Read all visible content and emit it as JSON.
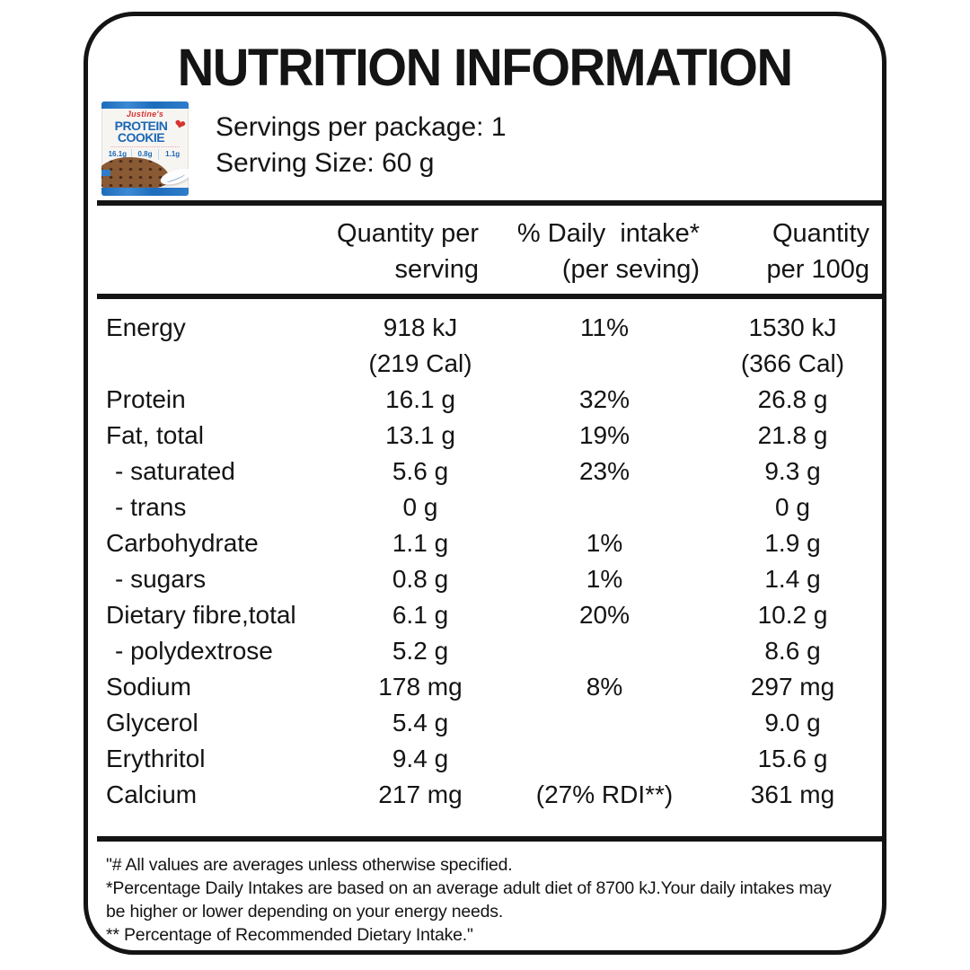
{
  "colors": {
    "ink": "#141414",
    "package_blue": "#1d6cbd",
    "package_text_blue": "#1b67b5",
    "package_red": "#d6332f",
    "cookie_brown": "#8a5a35"
  },
  "header": {
    "title": "NUTRITION INFORMATION",
    "servings_per_package": "Servings per package: 1",
    "serving_size": "Serving Size: 60 g"
  },
  "package": {
    "brand": "Justine's",
    "product_line1": "PROTEIN",
    "product_line2": "COOKIE",
    "heart_icon": "❤",
    "stats": [
      "16.1g",
      "0.8g",
      "1.1g"
    ]
  },
  "table": {
    "header": {
      "col2_line1": "Quantity per",
      "col2_line2": "serving",
      "col3_line1": "% Daily  intake*",
      "col3_line2": "(per seving)",
      "col4_line1": "Quantity",
      "col4_line2": "per 100g"
    },
    "rows": [
      {
        "label": "Energy",
        "serving": "918 kJ",
        "serving_sub": "(219 Cal)",
        "di": "11%",
        "per100": "1530 kJ",
        "per100_sub": "(366 Cal)"
      },
      {
        "label": "Protein",
        "serving": "16.1 g",
        "di": "32%",
        "per100": "26.8 g"
      },
      {
        "label": "Fat, total",
        "serving": "13.1 g",
        "di": "19%",
        "per100": "21.8 g"
      },
      {
        "label": "- saturated",
        "serving": "5.6 g",
        "di": "23%",
        "per100": "9.3 g"
      },
      {
        "label": "- trans",
        "serving": "0 g",
        "di": "",
        "per100": "0 g"
      },
      {
        "label": "Carbohydrate",
        "serving": "1.1 g",
        "di": "1%",
        "per100": "1.9 g"
      },
      {
        "label": "- sugars",
        "serving": "0.8 g",
        "di": "1%",
        "per100": "1.4 g"
      },
      {
        "label": "Dietary fibre,total",
        "serving": "6.1 g",
        "di": "20%",
        "per100": "10.2 g"
      },
      {
        "label": "- polydextrose",
        "serving": "5.2 g",
        "di": "",
        "per100": "8.6 g"
      },
      {
        "label": "Sodium",
        "serving": "178 mg",
        "di": "8%",
        "per100": "297 mg"
      },
      {
        "label": "Glycerol",
        "serving": "5.4 g",
        "di": "",
        "per100": "9.0 g"
      },
      {
        "label": "Erythritol",
        "serving": "9.4 g",
        "di": "",
        "per100": "15.6 g"
      },
      {
        "label": "Calcium",
        "serving": "217 mg",
        "di": "(27% RDI**)",
        "per100": "361 mg"
      }
    ]
  },
  "footnotes": {
    "lines": [
      "\"# All values are averages unless otherwise specified.",
      "*Percentage Daily Intakes are based on an average adult diet of 8700 kJ.Your daily intakes may",
      "be higher or lower depending on your energy needs.",
      "** Percentage of Recommended Dietary Intake.\""
    ]
  }
}
